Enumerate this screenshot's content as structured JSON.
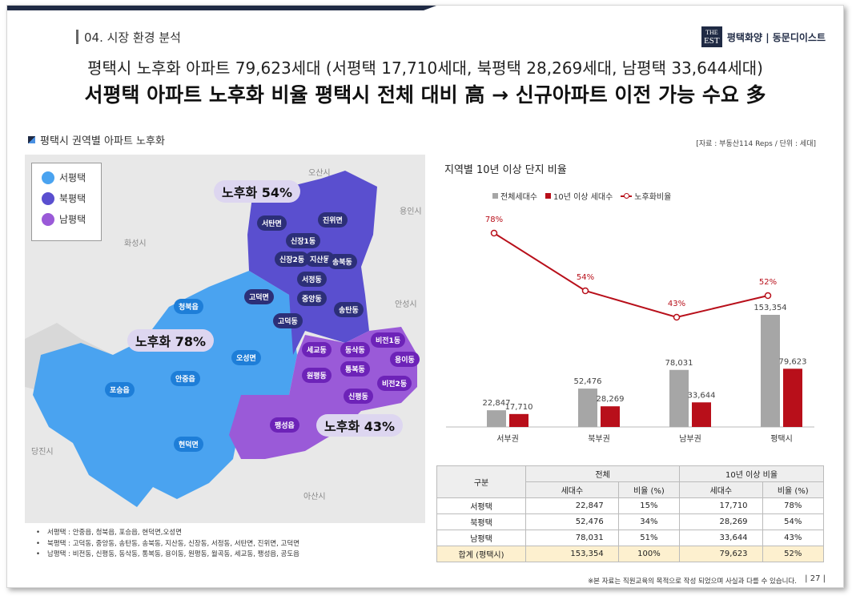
{
  "header": {
    "section_title": "04. 시장 환경 분석",
    "brand_logo_top": "THE",
    "brand_logo_main": "EST",
    "brand_text": "평택화양 | 동문디이스트",
    "headline1": "평택시 노후화 아파트 79,623세대 (서평택 17,710세대, 북평택 28,269세대, 남평택 33,644세대)",
    "headline2": "서평택 아파트 노후화 비율 평택시 전체 대비 高 → 신규아파트 이전 가능 수요 多"
  },
  "map": {
    "title": "평택시 권역별 아파트 노후화",
    "source": "[자료 : 부동산114 Reps / 단위 : 세대]",
    "legend": [
      {
        "label": "서평택",
        "color": "#4aa3f0"
      },
      {
        "label": "북평택",
        "color": "#5a4fcf"
      },
      {
        "label": "남평택",
        "color": "#9a5ad8"
      }
    ],
    "bubbles": {
      "north": "노후화 54%",
      "west": "노후화 78%",
      "south": "노후화 43%"
    },
    "cities": {
      "osan": "오산시",
      "yongin": "용인시",
      "hwaseong": "화성시",
      "anseong": "안성시",
      "dangjin": "당진시",
      "asan": "아산시"
    },
    "districts": {
      "seotan": "서탄면",
      "jinwi": "진위면",
      "sinjang1": "신장1동",
      "sinjang2": "신장2동",
      "jisan": "지산동",
      "songbuk": "송북동",
      "seojeong": "서정동",
      "godeok_myeon": "고덕면",
      "jungang": "중앙동",
      "songtan": "송탄동",
      "godeok_dong": "고덕동",
      "cheongbuk": "청북읍",
      "oseong": "오성면",
      "anjung": "안중읍",
      "poseung": "포승읍",
      "hyeondeok": "현덕면",
      "bijeon1": "비전1동",
      "segyo": "세교동",
      "dongsak": "동삭동",
      "yongi": "용이동",
      "wonpyeong": "원평동",
      "tongbok": "통복동",
      "bijeon2": "비전2동",
      "sinpyeong": "신평동",
      "paengseong": "팽성읍"
    },
    "notes": [
      "서평택 : 안중읍, 청북읍, 포승읍, 현덕면,오성면",
      "북평택 : 고덕동, 중앙동, 송탄동, 송북동, 지산동, 신장동, 서정동, 서탄면, 진위면, 고덕면",
      "남평택 : 비전동, 신평동, 동삭동, 통복동, 용이동, 원평동, 월곡동, 세교동, 팽성읍, 공도읍"
    ]
  },
  "chart": {
    "title": "지역별 10년 이상 단지 비율",
    "legend": {
      "total": "전체세대수",
      "old": "10년 이상 세대수",
      "ratio": "노후화비율"
    },
    "colors": {
      "total": "#a6a6a6",
      "old": "#b80f1a",
      "ratio": "#b80f1a"
    }
  },
  "chart_data": {
    "type": "bar",
    "title": "지역별 10년 이상 단지 비율",
    "categories": [
      "서부권",
      "북부권",
      "남부권",
      "평택시"
    ],
    "series": [
      {
        "name": "전체세대수",
        "values": [
          22847,
          52476,
          78031,
          153354
        ],
        "labels": [
          "22,847",
          "52,476",
          "78,031",
          "153,354"
        ]
      },
      {
        "name": "10년 이상 세대수",
        "values": [
          17710,
          28269,
          33644,
          79623
        ],
        "labels": [
          "17,710",
          "28,269",
          "33,644",
          "79,623"
        ]
      },
      {
        "name": "노후화비율",
        "type": "line",
        "values": [
          78,
          54,
          43,
          52
        ],
        "labels": [
          "78%",
          "54%",
          "43%",
          "52%"
        ]
      }
    ],
    "grid": false,
    "legend_position": "top"
  },
  "table": {
    "col_header_main": "구분",
    "group_total": "전체",
    "group_old": "10년 이상 비율",
    "sub_headers": [
      "세대수",
      "비율 (%)",
      "세대수",
      "비율 (%)"
    ],
    "rows": [
      {
        "name": "서평택",
        "total": "22,847",
        "total_pct": "15%",
        "old": "17,710",
        "old_pct": "78%"
      },
      {
        "name": "북평택",
        "total": "52,476",
        "total_pct": "34%",
        "old": "28,269",
        "old_pct": "54%"
      },
      {
        "name": "남평택",
        "total": "78,031",
        "total_pct": "51%",
        "old": "33,644",
        "old_pct": "43%"
      },
      {
        "name": "합계 (평택시)",
        "total": "153,354",
        "total_pct": "100%",
        "old": "79,623",
        "old_pct": "52%"
      }
    ]
  },
  "footer": {
    "note": "※본 자료는 직원교육의 목적으로 작성 되었으며 사실과 다를 수 있습니다.",
    "page": "| 27 |"
  }
}
